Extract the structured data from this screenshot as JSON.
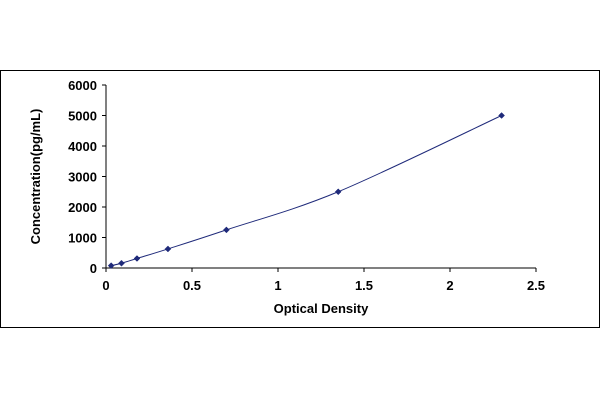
{
  "chart_data": {
    "type": "scatter",
    "title": "",
    "xlabel": "Optical Density",
    "ylabel": "Concentration(pg/mL)",
    "xlim": [
      0,
      2.5
    ],
    "ylim": [
      0,
      6000
    ],
    "x_ticks": [
      "0",
      "0.5",
      "1",
      "1.5",
      "2",
      "2.5"
    ],
    "y_ticks": [
      "0",
      "1000",
      "2000",
      "3000",
      "4000",
      "5000",
      "6000"
    ],
    "grid": false,
    "legend": "none",
    "series": [
      {
        "x": [
          0.03,
          0.09,
          0.18,
          0.36,
          0.7,
          1.35,
          2.3
        ],
        "y": [
          78,
          156,
          312,
          625,
          1250,
          2500,
          5000
        ],
        "marker": "diamond",
        "trendline": true
      }
    ],
    "colors": {
      "marker": "#1f2a7a",
      "line": "#1f2a7a",
      "axis": "#000000"
    }
  }
}
